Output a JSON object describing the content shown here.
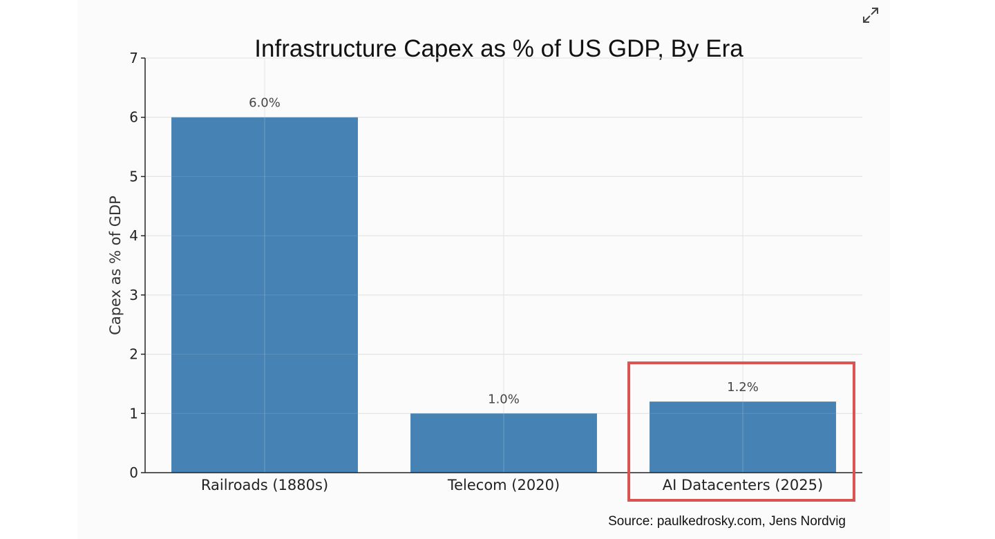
{
  "colors": {
    "bar": "#4682b4",
    "highlight": "#d9534f",
    "grid": "#dcdcdc",
    "axis": "#222222"
  },
  "icons": {
    "expand": "expand-icon"
  },
  "chart_data": {
    "type": "bar",
    "title": "Infrastructure Capex as % of US GDP, By Era",
    "xlabel": "",
    "ylabel": "Capex as % of GDP",
    "categories": [
      "Railroads (1880s)",
      "Telecom (2020)",
      "AI Datacenters (2025)"
    ],
    "values": [
      6.0,
      1.0,
      1.2
    ],
    "value_labels": [
      "6.0%",
      "1.0%",
      "1.2%"
    ],
    "ylim": [
      0,
      7
    ],
    "yticks": [
      0,
      1,
      2,
      3,
      4,
      5,
      6,
      7
    ],
    "grid": true,
    "highlighted_category": "AI Datacenters (2025)",
    "source": "Source: paulkedrosky.com, Jens Nordvig"
  }
}
